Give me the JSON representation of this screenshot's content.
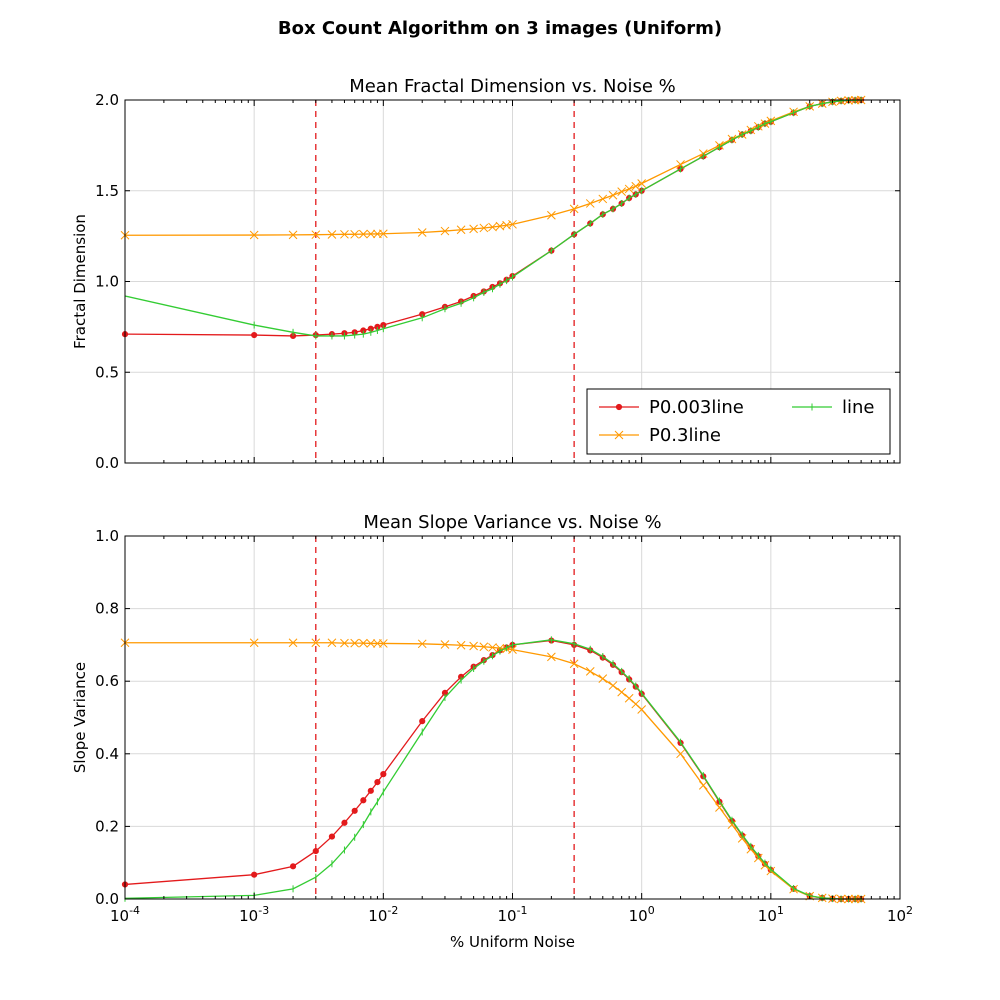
{
  "figure": {
    "title": "Box Count Algorithm on 3 images (Uniform)"
  },
  "colors": {
    "P0.003line": "#e31a1c",
    "P0.3line": "#ff9900",
    "line": "#33cc33",
    "vline": "#e31a1c"
  },
  "chart_data": [
    {
      "type": "line",
      "title": "Mean Fractal Dimension vs. Noise %",
      "xlabel": "",
      "ylabel": "Fractal Dimension",
      "xscale": "log",
      "xlim": [
        0.0001,
        100
      ],
      "ylim": [
        0.0,
        2.0
      ],
      "yticks": [
        "0.0",
        "0.5",
        "1.0",
        "1.5",
        "2.0"
      ],
      "grid": true,
      "legend": "lower-right",
      "vlines": [
        0.003,
        0.3
      ],
      "x": [
        0.0001,
        0.001,
        0.002,
        0.003,
        0.004,
        0.005,
        0.006,
        0.007,
        0.008,
        0.009,
        0.01,
        0.02,
        0.03,
        0.04,
        0.05,
        0.06,
        0.07,
        0.08,
        0.09,
        0.1,
        0.2,
        0.3,
        0.4,
        0.5,
        0.6,
        0.7,
        0.8,
        0.9,
        1,
        2,
        3,
        4,
        5,
        6,
        7,
        8,
        9,
        10,
        15,
        20,
        25,
        30,
        35,
        40,
        45,
        50
      ],
      "series": [
        {
          "name": "P0.003line",
          "marker": "dot",
          "values": [
            0.71,
            0.705,
            0.7,
            0.705,
            0.71,
            0.715,
            0.72,
            0.73,
            0.74,
            0.75,
            0.76,
            0.82,
            0.86,
            0.89,
            0.92,
            0.945,
            0.97,
            0.99,
            1.01,
            1.03,
            1.17,
            1.26,
            1.32,
            1.37,
            1.4,
            1.43,
            1.46,
            1.48,
            1.5,
            1.62,
            1.69,
            1.74,
            1.78,
            1.81,
            1.83,
            1.85,
            1.87,
            1.88,
            1.93,
            1.965,
            1.98,
            1.99,
            1.995,
            1.998,
            1.999,
            2.0
          ]
        },
        {
          "name": "P0.3line",
          "marker": "x",
          "values": [
            1.255,
            1.256,
            1.257,
            1.258,
            1.259,
            1.26,
            1.26,
            1.261,
            1.262,
            1.262,
            1.263,
            1.27,
            1.278,
            1.285,
            1.29,
            1.295,
            1.3,
            1.305,
            1.31,
            1.315,
            1.365,
            1.4,
            1.43,
            1.455,
            1.475,
            1.495,
            1.51,
            1.525,
            1.54,
            1.645,
            1.705,
            1.75,
            1.785,
            1.81,
            1.835,
            1.855,
            1.87,
            1.885,
            1.935,
            1.965,
            1.98,
            1.99,
            1.995,
            1.998,
            1.999,
            2.0
          ]
        },
        {
          "name": "line",
          "marker": "tick",
          "values": [
            0.92,
            0.76,
            0.72,
            0.7,
            0.7,
            0.7,
            0.705,
            0.71,
            0.72,
            0.73,
            0.74,
            0.8,
            0.85,
            0.88,
            0.91,
            0.94,
            0.96,
            0.985,
            1.005,
            1.025,
            1.17,
            1.26,
            1.32,
            1.37,
            1.4,
            1.43,
            1.46,
            1.48,
            1.5,
            1.62,
            1.69,
            1.74,
            1.78,
            1.81,
            1.83,
            1.85,
            1.87,
            1.88,
            1.93,
            1.965,
            1.98,
            1.99,
            1.995,
            1.998,
            1.999,
            2.0
          ]
        }
      ]
    },
    {
      "type": "line",
      "title": "Mean Slope Variance vs. Noise %",
      "xlabel": "% Uniform Noise",
      "ylabel": "Slope Variance",
      "xscale": "log",
      "xlim": [
        0.0001,
        100
      ],
      "ylim": [
        0.0,
        1.0
      ],
      "yticks": [
        "0.0",
        "0.2",
        "0.4",
        "0.6",
        "0.8",
        "1.0"
      ],
      "xticks": [
        {
          "base": "10",
          "exp": "-4"
        },
        {
          "base": "10",
          "exp": "-3"
        },
        {
          "base": "10",
          "exp": "-2"
        },
        {
          "base": "10",
          "exp": "-1"
        },
        {
          "base": "10",
          "exp": "0"
        },
        {
          "base": "10",
          "exp": "1"
        },
        {
          "base": "10",
          "exp": "2"
        }
      ],
      "grid": true,
      "vlines": [
        0.003,
        0.3
      ],
      "x": [
        0.0001,
        0.001,
        0.002,
        0.003,
        0.004,
        0.005,
        0.006,
        0.007,
        0.008,
        0.009,
        0.01,
        0.02,
        0.03,
        0.04,
        0.05,
        0.06,
        0.07,
        0.08,
        0.09,
        0.1,
        0.2,
        0.3,
        0.4,
        0.5,
        0.6,
        0.7,
        0.8,
        0.9,
        1,
        2,
        3,
        4,
        5,
        6,
        7,
        8,
        9,
        10,
        15,
        20,
        25,
        30,
        35,
        40,
        45,
        50
      ],
      "series": [
        {
          "name": "P0.003line",
          "marker": "dot",
          "values": [
            0.04,
            0.067,
            0.09,
            0.132,
            0.172,
            0.21,
            0.243,
            0.272,
            0.298,
            0.322,
            0.344,
            0.49,
            0.568,
            0.612,
            0.64,
            0.658,
            0.672,
            0.685,
            0.693,
            0.7,
            0.712,
            0.7,
            0.685,
            0.665,
            0.645,
            0.625,
            0.605,
            0.585,
            0.565,
            0.43,
            0.338,
            0.268,
            0.215,
            0.175,
            0.143,
            0.118,
            0.097,
            0.08,
            0.028,
            0.008,
            0.003,
            0.001,
            0.0,
            0.0,
            0.0,
            0.0
          ]
        },
        {
          "name": "P0.3line",
          "marker": "x",
          "values": [
            0.706,
            0.706,
            0.706,
            0.706,
            0.706,
            0.705,
            0.705,
            0.705,
            0.704,
            0.704,
            0.704,
            0.703,
            0.701,
            0.699,
            0.697,
            0.695,
            0.693,
            0.691,
            0.689,
            0.687,
            0.667,
            0.648,
            0.627,
            0.607,
            0.588,
            0.57,
            0.553,
            0.537,
            0.522,
            0.4,
            0.313,
            0.252,
            0.205,
            0.167,
            0.137,
            0.113,
            0.093,
            0.077,
            0.027,
            0.008,
            0.003,
            0.001,
            0.0,
            0.0,
            0.0,
            0.0
          ]
        },
        {
          "name": "line",
          "marker": "tick",
          "values": [
            0.002,
            0.01,
            0.028,
            0.06,
            0.097,
            0.135,
            0.17,
            0.205,
            0.24,
            0.268,
            0.295,
            0.46,
            0.555,
            0.603,
            0.635,
            0.655,
            0.67,
            0.683,
            0.692,
            0.7,
            0.714,
            0.703,
            0.688,
            0.668,
            0.648,
            0.627,
            0.607,
            0.587,
            0.567,
            0.432,
            0.34,
            0.27,
            0.217,
            0.177,
            0.145,
            0.12,
            0.099,
            0.082,
            0.029,
            0.009,
            0.003,
            0.001,
            0.0,
            0.0,
            0.0,
            0.0
          ]
        }
      ]
    }
  ]
}
